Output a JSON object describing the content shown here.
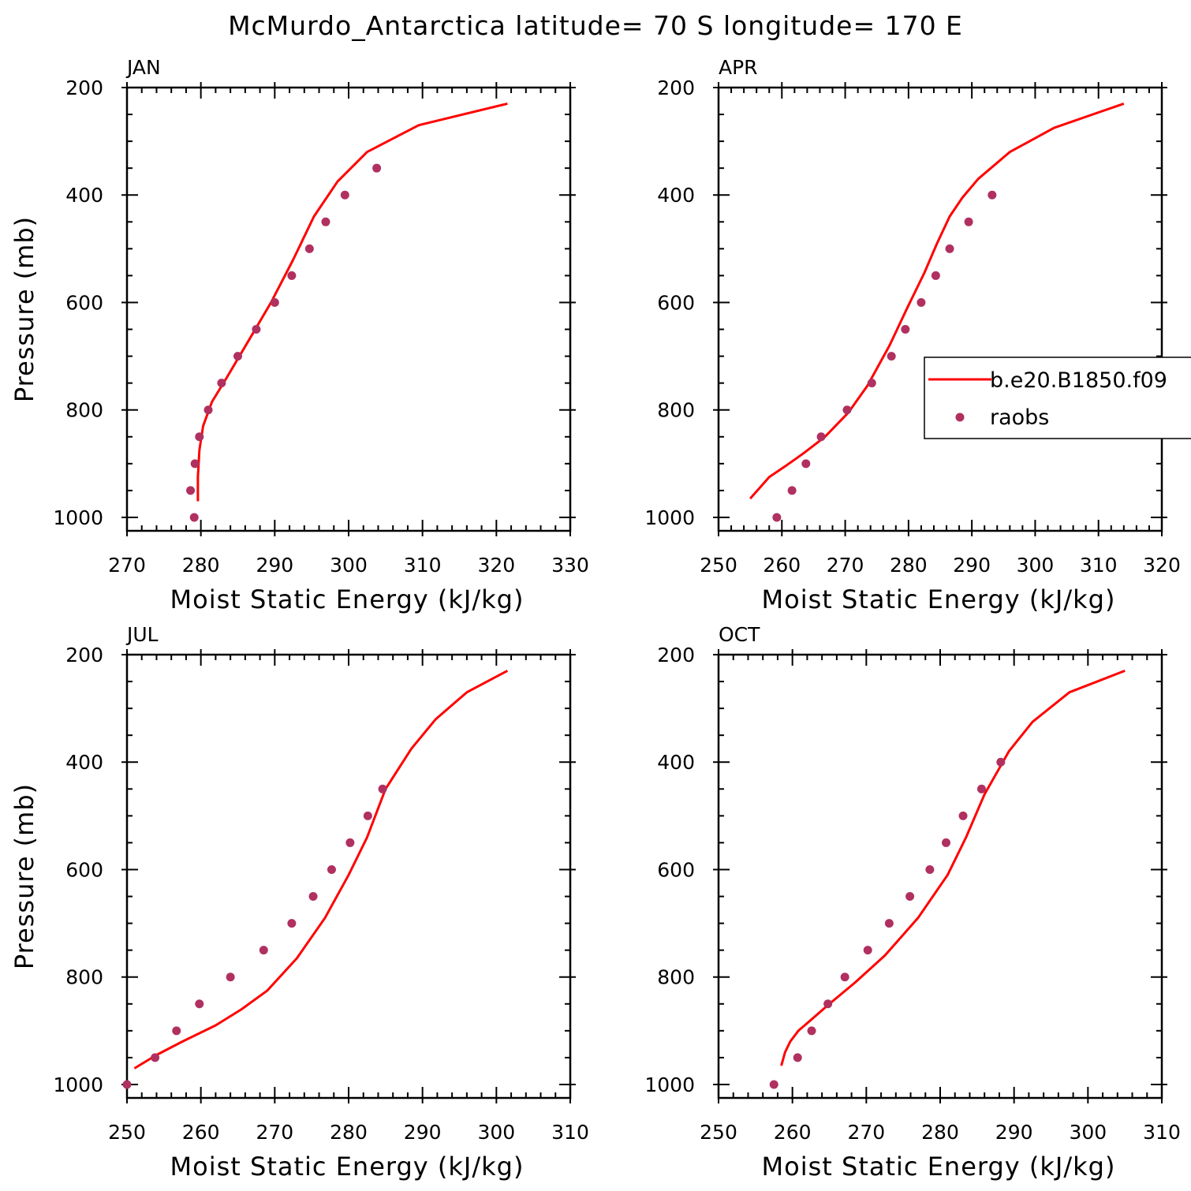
{
  "title": "McMurdo_Antarctica  latitude= 70 S longitude= 170 E",
  "legend": {
    "items": [
      {
        "label": "b.e20.B1850.f09",
        "kind": "line",
        "color": "#ff0000"
      },
      {
        "label": "raobs",
        "kind": "marker",
        "color": "#b03060"
      }
    ]
  },
  "colors": {
    "model_line": "#ff0000",
    "obs_marker": "#b03060",
    "axis": "#000000"
  },
  "chart_data": [
    {
      "type": "line",
      "panel": "JAN",
      "title": "JAN",
      "xlabel": "Moist Static Energy (kJ/kg)",
      "ylabel": "Pressure (mb)",
      "xlim": [
        270,
        330
      ],
      "ylim": [
        1025,
        200
      ],
      "y_inverted": true,
      "xticks": [
        "270",
        "280",
        "290",
        "300",
        "310",
        "320",
        "330"
      ],
      "yticks": [
        "200",
        "400",
        "600",
        "800",
        "1000"
      ],
      "series": [
        {
          "name": "b.e20.B1850.f09",
          "kind": "line",
          "x": [
            279.6,
            279.6,
            279.8,
            280.3,
            281.5,
            283.5,
            286.5,
            289.5,
            292.5,
            295.3,
            298.5,
            302.5,
            309.5,
            321.5
          ],
          "y": [
            970,
            925,
            875,
            830,
            785,
            740,
            670,
            600,
            520,
            440,
            375,
            320,
            270,
            230
          ]
        },
        {
          "name": "raobs",
          "kind": "marker",
          "x": [
            279.1,
            278.6,
            279.2,
            279.8,
            281.0,
            282.8,
            285.0,
            287.5,
            290.0,
            292.3,
            294.7,
            296.9,
            299.5,
            303.8
          ],
          "y": [
            1000,
            950,
            900,
            850,
            800,
            750,
            700,
            650,
            600,
            550,
            500,
            450,
            400,
            350
          ]
        }
      ]
    },
    {
      "type": "line",
      "panel": "APR",
      "title": "APR",
      "xlabel": "Moist Static Energy (kJ/kg)",
      "ylabel": "",
      "xlim": [
        250,
        320
      ],
      "ylim": [
        1025,
        200
      ],
      "y_inverted": true,
      "xticks": [
        "250",
        "260",
        "270",
        "280",
        "290",
        "300",
        "310",
        "320"
      ],
      "yticks": [
        "200",
        "400",
        "600",
        "800",
        "1000"
      ],
      "series": [
        {
          "name": "b.e20.B1850.f09",
          "kind": "line",
          "x": [
            255.0,
            256.5,
            258.0,
            260.5,
            263.5,
            266.8,
            270.5,
            273.5,
            277.0,
            279.8,
            282.5,
            284.5,
            286.5,
            288.5,
            291.0,
            296.0,
            303.0,
            314.0
          ],
          "y": [
            965,
            945,
            925,
            905,
            880,
            850,
            805,
            755,
            680,
            610,
            545,
            490,
            440,
            405,
            370,
            320,
            275,
            230
          ]
        },
        {
          "name": "raobs",
          "kind": "marker",
          "x": [
            259.2,
            261.6,
            263.8,
            266.2,
            270.3,
            274.2,
            277.3,
            279.5,
            282.0,
            284.3,
            286.5,
            289.5,
            293.2
          ],
          "y": [
            1000,
            950,
            900,
            850,
            800,
            750,
            700,
            650,
            600,
            550,
            500,
            450,
            400
          ]
        }
      ]
    },
    {
      "type": "line",
      "panel": "JUL",
      "title": "JUL",
      "xlabel": "Moist Static Energy (kJ/kg)",
      "ylabel": "Pressure (mb)",
      "xlim": [
        250,
        310
      ],
      "ylim": [
        1025,
        200
      ],
      "y_inverted": true,
      "xticks": [
        "250",
        "260",
        "270",
        "280",
        "290",
        "300",
        "310"
      ],
      "yticks": [
        "200",
        "400",
        "600",
        "800",
        "1000"
      ],
      "series": [
        {
          "name": "b.e20.B1850.f09",
          "kind": "line",
          "x": [
            251.0,
            254.0,
            257.5,
            262.0,
            265.5,
            269.0,
            273.0,
            276.8,
            280.0,
            282.5,
            285.0,
            288.5,
            291.8,
            296.0,
            301.5
          ],
          "y": [
            970,
            945,
            920,
            890,
            860,
            825,
            765,
            690,
            610,
            540,
            450,
            375,
            320,
            270,
            230
          ]
        },
        {
          "name": "raobs",
          "kind": "marker",
          "x": [
            250.0,
            253.8,
            256.7,
            259.8,
            264.0,
            268.5,
            272.3,
            275.2,
            277.7,
            280.2,
            282.6,
            284.6
          ],
          "y": [
            1000,
            950,
            900,
            850,
            800,
            750,
            700,
            650,
            600,
            550,
            500,
            450
          ]
        }
      ]
    },
    {
      "type": "line",
      "panel": "OCT",
      "title": "OCT",
      "xlabel": "Moist Static Energy (kJ/kg)",
      "ylabel": "",
      "xlim": [
        250,
        310
      ],
      "ylim": [
        1025,
        200
      ],
      "y_inverted": true,
      "xticks": [
        "250",
        "260",
        "270",
        "280",
        "290",
        "300",
        "310"
      ],
      "yticks": [
        "200",
        "400",
        "600",
        "800",
        "1000"
      ],
      "series": [
        {
          "name": "b.e20.B1850.f09",
          "kind": "line",
          "x": [
            258.5,
            259.0,
            259.7,
            260.8,
            262.5,
            265.0,
            268.5,
            272.5,
            277.0,
            281.0,
            283.5,
            286.0,
            289.3,
            292.5,
            297.5,
            305.0
          ],
          "y": [
            965,
            940,
            920,
            900,
            880,
            850,
            810,
            760,
            690,
            610,
            540,
            460,
            380,
            325,
            270,
            230
          ]
        },
        {
          "name": "raobs",
          "kind": "marker",
          "x": [
            257.5,
            260.7,
            262.6,
            264.8,
            267.1,
            270.2,
            273.1,
            275.9,
            278.6,
            280.8,
            283.1,
            285.6,
            288.2
          ],
          "y": [
            1000,
            950,
            900,
            850,
            800,
            750,
            700,
            650,
            600,
            550,
            500,
            450,
            400
          ]
        }
      ]
    }
  ]
}
